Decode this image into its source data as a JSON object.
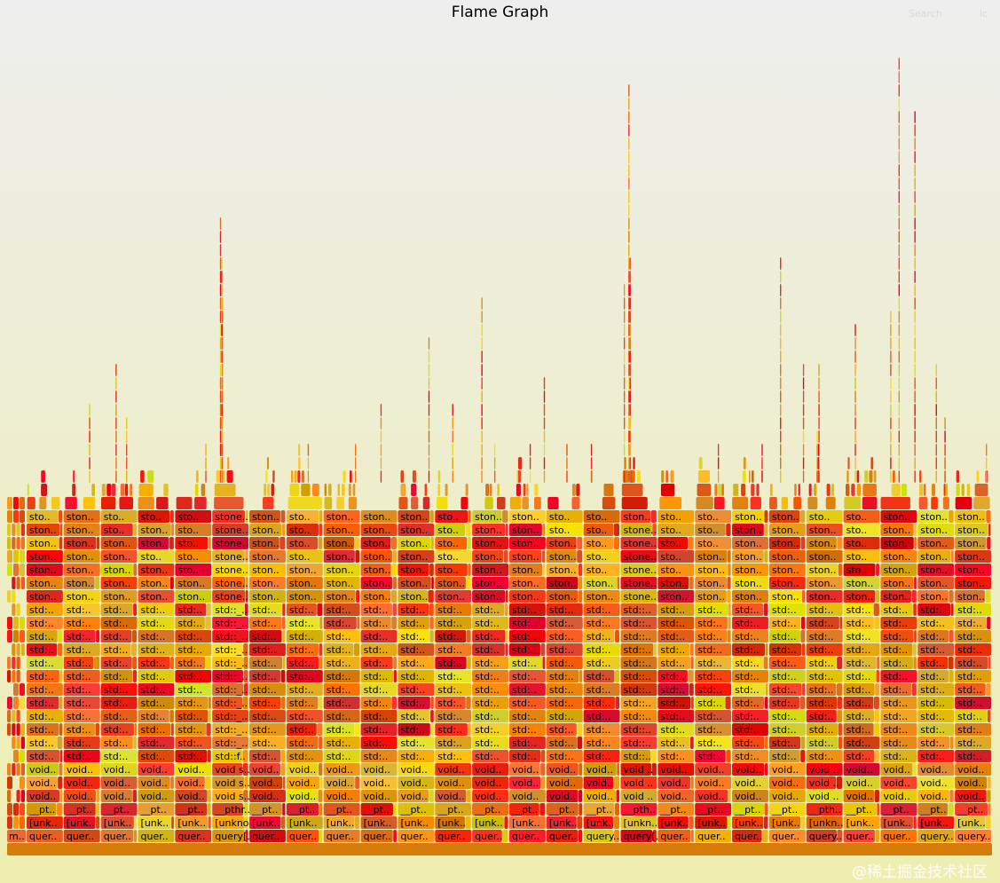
{
  "title": "Flame Graph",
  "search_label": "Search",
  "ignorecase_label": "ic",
  "watermark": "@稀土掘金技术社区",
  "chart_data": {
    "type": "flamegraph",
    "title": "Flame Graph",
    "depth_levels": 27,
    "root_label": "",
    "left_column_label": "m..",
    "column_count": 26,
    "columns": [
      {
        "labels": [
          "quer..",
          "[unk..",
          "__pt..",
          "void..",
          "void..",
          "void..",
          "std:..",
          "std:..",
          "std:..",
          "std:..",
          "std:..",
          "std:..",
          "std:..",
          "std:..",
          "std:..",
          "std:..",
          "std:..",
          "std:..",
          "ston..",
          "ston..",
          "ston..",
          "ston..",
          "ston..",
          "ston..",
          "sto.."
        ],
        "spike": 0.31
      },
      {
        "labels": [
          "quer..",
          "[unk..",
          "__pt..",
          "void..",
          "void..",
          "void..",
          "std:..",
          "std:..",
          "std:..",
          "std:..",
          "std:..",
          "std:..",
          "std:..",
          "std:..",
          "std:..",
          "std:..",
          "std:..",
          "std:..",
          "ston..",
          "ston..",
          "ston..",
          "ston..",
          "ston..",
          "ston..",
          "ston.."
        ],
        "spike": 0.55
      },
      {
        "labels": [
          "quer..",
          "[unk..",
          "__pt..",
          "void..",
          "void..",
          "void..",
          "std:..",
          "std:..",
          "std:..",
          "std:..",
          "std:..",
          "std:..",
          "std:..",
          "std:..",
          "std:..",
          "std:..",
          "std:..",
          "std:..",
          "ston..",
          "ston..",
          "ston..",
          "ston..",
          "ston..",
          "sto..",
          "sto.."
        ],
        "spike": 0.6
      },
      {
        "labels": [
          "quer..",
          "[unk..",
          "__pt..",
          "void..",
          "void..",
          "void..",
          "std:..",
          "std:..",
          "std:..",
          "std:..",
          "std:..",
          "std:..",
          "std:..",
          "std:..",
          "std:..",
          "std:..",
          "std:..",
          "std:..",
          "ston..",
          "ston..",
          "ston..",
          "sto..",
          "ston..",
          "ston..",
          "sto.."
        ],
        "spike": 0.42
      },
      {
        "labels": [
          "quer..",
          "[unk..",
          "__pt..",
          "void..",
          "void..",
          "void..",
          "std:..",
          "std:..",
          "std:..",
          "std:..",
          "std:..",
          "std:..",
          "std:..",
          "std:..",
          "std:..",
          "std:..",
          "std:..",
          "std:..",
          "ston..",
          "ston..",
          "sto..",
          "sto..",
          "sto..",
          "sto..",
          "sto.."
        ],
        "spike": 0.5
      },
      {
        "labels": [
          "query[..",
          "[unkno..",
          "__pthr..",
          "void s..",
          "void s..",
          "void s..",
          "std::f..",
          "std::_..",
          "std::_..",
          "std::_..",
          "std::_..",
          "std::_..",
          "std::_..",
          "std::_..",
          "std::_..",
          "std::_..",
          "std::_..",
          "std::_..",
          "stone..",
          "stone..",
          "stone..",
          "stone..",
          "stone..",
          "stone..",
          "stone.."
        ],
        "spike": 0.78
      },
      {
        "labels": [
          "quer..",
          "[unk..",
          "__pt..",
          "void..",
          "void..",
          "void..",
          "std:..",
          "std:..",
          "std:..",
          "std:..",
          "std:..",
          "std:..",
          "std:..",
          "std:..",
          "std:..",
          "std:..",
          "std:..",
          "std:..",
          "ston..",
          "ston..",
          "ston..",
          "ston..",
          "ston..",
          "ston..",
          "ston.."
        ],
        "spike": 0.45
      },
      {
        "labels": [
          "quer..",
          "[unk..",
          "__pt..",
          "void..",
          "void..",
          "void..",
          "std:..",
          "std:..",
          "std:..",
          "std:..",
          "std:..",
          "std:..",
          "std:..",
          "std:..",
          "std:..",
          "std:..",
          "std:..",
          "std:..",
          "ston..",
          "ston..",
          "ston..",
          "sto..",
          "sto..",
          "sto..",
          "sto.."
        ],
        "spike": 0.5
      },
      {
        "labels": [
          "quer..",
          "[unk..",
          "__pt..",
          "void..",
          "void..",
          "void..",
          "std:..",
          "std:..",
          "std:..",
          "std:..",
          "std:..",
          "std:..",
          "std:..",
          "std:..",
          "std:..",
          "std:..",
          "std:..",
          "std:..",
          "ston..",
          "ston..",
          "ston..",
          "ston..",
          "ston..",
          "ston..",
          "ston.."
        ],
        "spike": 0.5
      },
      {
        "labels": [
          "quer..",
          "[unk..",
          "__pt..",
          "void..",
          "void..",
          "void..",
          "std:..",
          "std:..",
          "std:..",
          "std:..",
          "std:..",
          "std:..",
          "std:..",
          "std:..",
          "std:..",
          "std:..",
          "std:..",
          "std:..",
          "ston..",
          "ston..",
          "ston..",
          "ston..",
          "ston..",
          "ston..",
          "ston.."
        ],
        "spike": 0.55
      },
      {
        "labels": [
          "quer..",
          "[unk..",
          "__pt..",
          "void..",
          "void..",
          "void..",
          "std:..",
          "std:..",
          "std:..",
          "std:..",
          "std:..",
          "std:..",
          "std:..",
          "std:..",
          "std:..",
          "std:..",
          "std:..",
          "std:..",
          "ston..",
          "ston..",
          "ston..",
          "ston..",
          "ston..",
          "ston..",
          "ston.."
        ],
        "spike": 0.62
      },
      {
        "labels": [
          "quer..",
          "[unk..",
          "__pt..",
          "void..",
          "void..",
          "void..",
          "std:..",
          "std:..",
          "std:..",
          "std:..",
          "std:..",
          "std:..",
          "std:..",
          "std:..",
          "std:..",
          "std:..",
          "std:..",
          "std:..",
          "ston..",
          "ston..",
          "sto..",
          "sto..",
          "sto..",
          "sto..",
          "sto.."
        ],
        "spike": 0.55
      },
      {
        "labels": [
          "quer..",
          "[unk..",
          "__pt..",
          "void..",
          "void..",
          "void..",
          "std:..",
          "std:..",
          "std:..",
          "std:..",
          "std:..",
          "std:..",
          "std:..",
          "std:..",
          "std:..",
          "std:..",
          "std:..",
          "std:..",
          "ston..",
          "ston..",
          "ston..",
          "ston..",
          "ston..",
          "ston..",
          "ston.."
        ],
        "spike": 0.68
      },
      {
        "labels": [
          "quer..",
          "[unk..",
          "__pt..",
          "void..",
          "void..",
          "void..",
          "std:..",
          "std:..",
          "std:..",
          "std:..",
          "std:..",
          "std:..",
          "std:..",
          "std:..",
          "std:..",
          "std:..",
          "std:..",
          "std:..",
          "ston..",
          "ston..",
          "ston..",
          "ston..",
          "ston..",
          "ston..",
          "ston.."
        ],
        "spike": 0.58
      },
      {
        "labels": [
          "quer..",
          "[unk..",
          "__pt..",
          "void..",
          "void..",
          "void..",
          "std:..",
          "std:..",
          "std:..",
          "std:..",
          "std:..",
          "std:..",
          "std:..",
          "std:..",
          "std:..",
          "std:..",
          "std:..",
          "std:..",
          "ston..",
          "ston..",
          "ston..",
          "ston..",
          "ston..",
          "sto..",
          "sto.."
        ],
        "spike": 0.5
      },
      {
        "labels": [
          "query..",
          "[unk..",
          "__pt..",
          "void..",
          "void..",
          "void..",
          "std:..",
          "std:..",
          "std:..",
          "std:..",
          "std:..",
          "std:..",
          "std:..",
          "std:..",
          "std:..",
          "std:..",
          "std:..",
          "std:..",
          "ston..",
          "ston..",
          "sto..",
          "sto..",
          "sto..",
          "sto..",
          "sto.."
        ],
        "spike": 0.5
      },
      {
        "labels": [
          "query[..",
          "[unkn..",
          "__pth..",
          "void ..",
          "void ..",
          "void ..",
          "std::..",
          "std::..",
          "std::..",
          "std::..",
          "std::..",
          "std::..",
          "std::..",
          "std::..",
          "std::..",
          "std::..",
          "std::..",
          "std::..",
          "stone..",
          "stone..",
          "stone..",
          "stone..",
          "stone..",
          "stone..",
          "ston.."
        ],
        "spike": 0.93
      },
      {
        "labels": [
          "quer..",
          "[unk..",
          "__pt..",
          "void..",
          "void..",
          "void..",
          "std:..",
          "std:..",
          "std:..",
          "std:..",
          "std:..",
          "std:..",
          "std:..",
          "std:..",
          "std:..",
          "std:..",
          "std:..",
          "std:..",
          "ston..",
          "ston..",
          "sto..",
          "sto..",
          "sto..",
          "sto..",
          "sto.."
        ],
        "spike": 0.45
      },
      {
        "labels": [
          "quer..",
          "[unk..",
          "__pt..",
          "void..",
          "void..",
          "void..",
          "std:..",
          "std:..",
          "std:..",
          "std:..",
          "std:..",
          "std:..",
          "std:..",
          "std:..",
          "std:..",
          "std:..",
          "std:..",
          "std:..",
          "ston..",
          "ston..",
          "ston..",
          "ston..",
          "sto..",
          "sto..",
          "sto.."
        ],
        "spike": 0.5
      },
      {
        "labels": [
          "quer..",
          "[unk..",
          "__pt..",
          "void..",
          "void..",
          "void..",
          "std:..",
          "std:..",
          "std:..",
          "std:..",
          "std:..",
          "std:..",
          "std:..",
          "std:..",
          "std:..",
          "std:..",
          "std:..",
          "std:..",
          "ston..",
          "ston..",
          "ston..",
          "ston..",
          "ston..",
          "ston..",
          "ston.."
        ],
        "spike": 0.5
      },
      {
        "labels": [
          "quer..",
          "[unk..",
          "__pt..",
          "void..",
          "void..",
          "void..",
          "std:..",
          "std:..",
          "std:..",
          "std:..",
          "std:..",
          "std:..",
          "std:..",
          "std:..",
          "std:..",
          "std:..",
          "std:..",
          "std:..",
          "ston..",
          "ston..",
          "ston..",
          "ston..",
          "ston..",
          "ston..",
          "ston.."
        ],
        "spike": 0.72
      },
      {
        "labels": [
          "query..",
          "[unkn..",
          "__pth..",
          "void ..",
          "void ..",
          "void ..",
          "std:..",
          "std:..",
          "std:..",
          "std:..",
          "std:..",
          "std:..",
          "std:..",
          "std:..",
          "std:..",
          "std:..",
          "std:..",
          "std:..",
          "ston..",
          "ston..",
          "ston..",
          "ston..",
          "ston..",
          "ston..",
          "sto.."
        ],
        "spike": 0.6
      },
      {
        "labels": [
          "quer..",
          "[unk..",
          "__pt..",
          "void..",
          "void..",
          "void..",
          "std:..",
          "std:..",
          "std:..",
          "std:..",
          "std:..",
          "std:..",
          "std:..",
          "std:..",
          "std:..",
          "std:..",
          "std:..",
          "std:..",
          "ston..",
          "ston..",
          "sto..",
          "sto..",
          "sto..",
          "sto..",
          "sto.."
        ],
        "spike": 0.65
      },
      {
        "labels": [
          "quer..",
          "[unk..",
          "__pt..",
          "void..",
          "void..",
          "void..",
          "std:..",
          "std:..",
          "std:..",
          "std:..",
          "std:..",
          "std:..",
          "std:..",
          "std:..",
          "std:..",
          "std:..",
          "std:..",
          "std:..",
          "ston..",
          "ston..",
          "ston..",
          "ston..",
          "ston..",
          "ston..",
          "ston.."
        ],
        "spike": 0.97
      },
      {
        "labels": [
          "query..",
          "[unk..",
          "__pt..",
          "void..",
          "void..",
          "void..",
          "std:..",
          "std:..",
          "std:..",
          "std:..",
          "std:..",
          "std:..",
          "std:..",
          "std:..",
          "std:..",
          "std:..",
          "std:..",
          "std:..",
          "ston..",
          "ston..",
          "ston..",
          "ston..",
          "ston..",
          "ston..",
          "ston.."
        ],
        "spike": 0.6
      },
      {
        "labels": [
          "query..",
          "[unk..",
          "__pt..",
          "void..",
          "void..",
          "void..",
          "std:..",
          "std:..",
          "std:..",
          "std:..",
          "std:..",
          "std:..",
          "std:..",
          "std:..",
          "std:..",
          "std:..",
          "std:..",
          "std:..",
          "ston..",
          "ston..",
          "ston..",
          "ston..",
          "ston..",
          "ston..",
          "ston.."
        ],
        "spike": 0.5
      }
    ]
  }
}
